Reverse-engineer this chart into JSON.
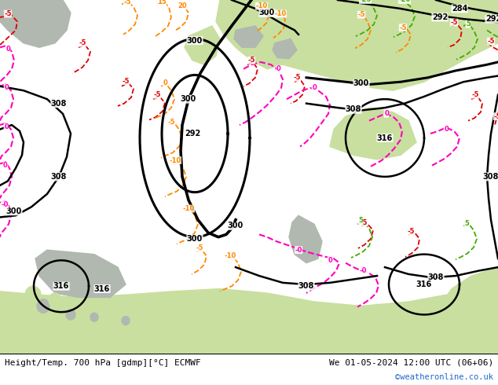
{
  "title_left": "Height/Temp. 700 hPa [gdmp][°C] ECMWF",
  "title_right": "We 01-05-2024 12:00 UTC (06+06)",
  "credit": "©weatheronline.co.uk",
  "bg_sea": "#c8c8c8",
  "bg_land_green": "#c8dfa0",
  "bg_land_gray": "#b0b8b0",
  "color_height": "#000000",
  "color_temp_red": "#dd0000",
  "color_temp_orange": "#ff8800",
  "color_temp_magenta": "#ff00bb",
  "color_temp_green": "#44aa00",
  "color_credit": "#2266cc"
}
